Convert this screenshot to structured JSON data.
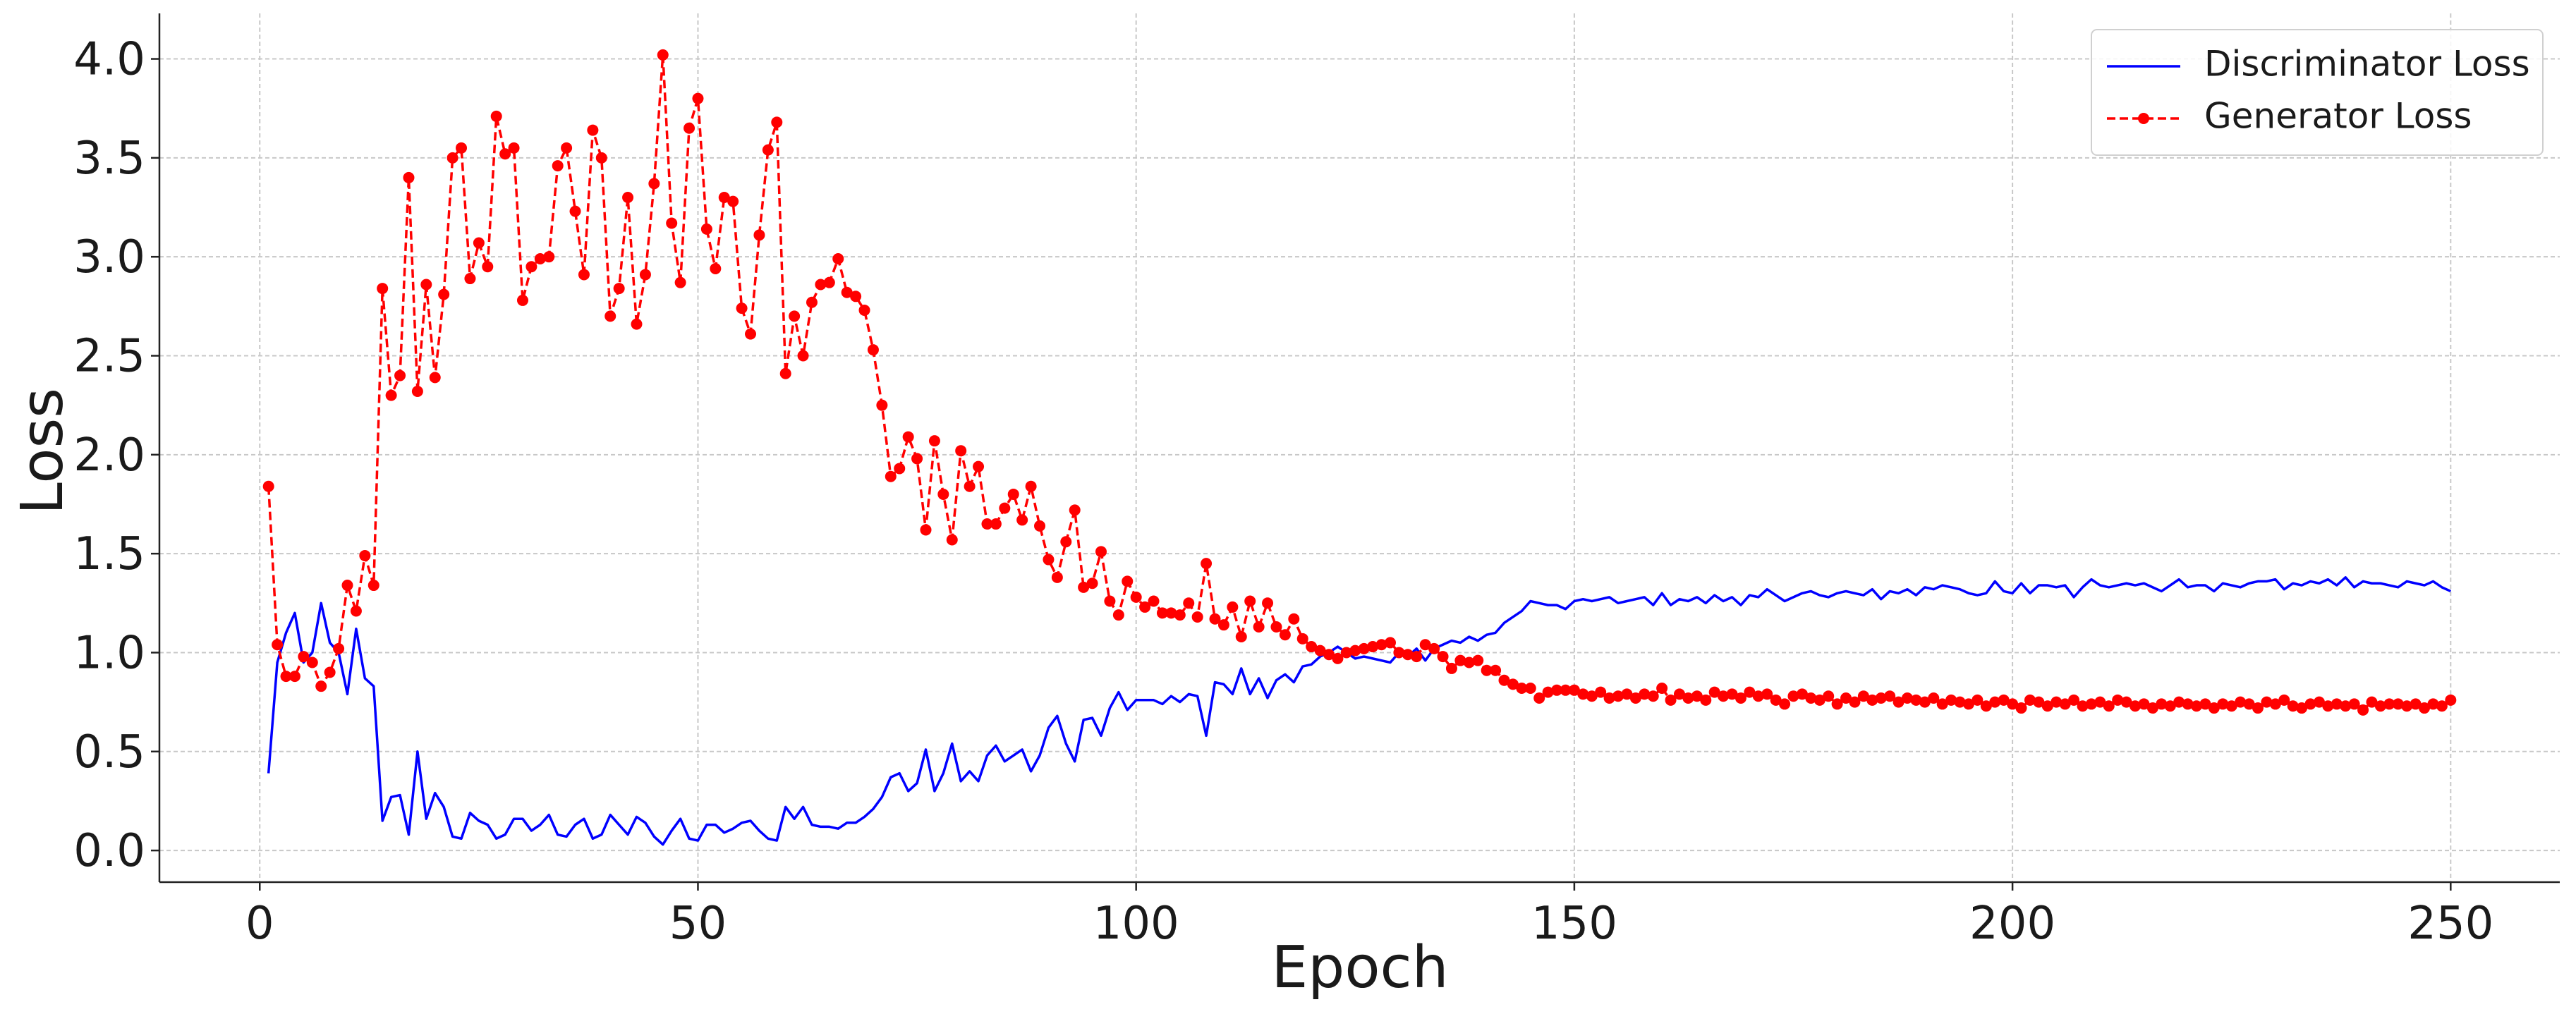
{
  "chart_data": {
    "type": "line",
    "xlabel": "Epoch",
    "ylabel": "Loss",
    "x": [
      1,
      2,
      3,
      4,
      5,
      6,
      7,
      8,
      9,
      10,
      11,
      12,
      13,
      14,
      15,
      16,
      17,
      18,
      19,
      20,
      21,
      22,
      23,
      24,
      25,
      26,
      27,
      28,
      29,
      30,
      31,
      32,
      33,
      34,
      35,
      36,
      37,
      38,
      39,
      40,
      41,
      42,
      43,
      44,
      45,
      46,
      47,
      48,
      49,
      50,
      51,
      52,
      53,
      54,
      55,
      56,
      57,
      58,
      59,
      60,
      61,
      62,
      63,
      64,
      65,
      66,
      67,
      68,
      69,
      70,
      71,
      72,
      73,
      74,
      75,
      76,
      77,
      78,
      79,
      80,
      81,
      82,
      83,
      84,
      85,
      86,
      87,
      88,
      89,
      90,
      91,
      92,
      93,
      94,
      95,
      96,
      97,
      98,
      99,
      100,
      101,
      102,
      103,
      104,
      105,
      106,
      107,
      108,
      109,
      110,
      111,
      112,
      113,
      114,
      115,
      116,
      117,
      118,
      119,
      120,
      121,
      122,
      123,
      124,
      125,
      126,
      127,
      128,
      129,
      130,
      131,
      132,
      133,
      134,
      135,
      136,
      137,
      138,
      139,
      140,
      141,
      142,
      143,
      144,
      145,
      146,
      147,
      148,
      149,
      150,
      151,
      152,
      153,
      154,
      155,
      156,
      157,
      158,
      159,
      160,
      161,
      162,
      163,
      164,
      165,
      166,
      167,
      168,
      169,
      170,
      171,
      172,
      173,
      174,
      175,
      176,
      177,
      178,
      179,
      180,
      181,
      182,
      183,
      184,
      185,
      186,
      187,
      188,
      189,
      190,
      191,
      192,
      193,
      194,
      195,
      196,
      197,
      198,
      199,
      200,
      201,
      202,
      203,
      204,
      205,
      206,
      207,
      208,
      209,
      210,
      211,
      212,
      213,
      214,
      215,
      216,
      217,
      218,
      219,
      220,
      221,
      222,
      223,
      224,
      225,
      226,
      227,
      228,
      229,
      230,
      231,
      232,
      233,
      234,
      235,
      236,
      237,
      238,
      239,
      240,
      241,
      242,
      243,
      244,
      245,
      246,
      247,
      248,
      249,
      250
    ],
    "series": [
      {
        "name": "Discriminator Loss",
        "color": "#0000ff",
        "dashed": false,
        "markers": false,
        "values": [
          0.39,
          0.95,
          1.1,
          1.2,
          0.95,
          1.0,
          1.25,
          1.05,
          1.0,
          0.79,
          1.12,
          0.87,
          0.83,
          0.15,
          0.27,
          0.28,
          0.08,
          0.5,
          0.16,
          0.29,
          0.22,
          0.07,
          0.06,
          0.19,
          0.15,
          0.13,
          0.06,
          0.08,
          0.16,
          0.16,
          0.1,
          0.13,
          0.18,
          0.08,
          0.07,
          0.13,
          0.16,
          0.06,
          0.08,
          0.18,
          0.13,
          0.08,
          0.17,
          0.14,
          0.07,
          0.03,
          0.1,
          0.16,
          0.06,
          0.05,
          0.13,
          0.13,
          0.09,
          0.11,
          0.14,
          0.15,
          0.1,
          0.06,
          0.05,
          0.22,
          0.16,
          0.22,
          0.13,
          0.12,
          0.12,
          0.11,
          0.14,
          0.14,
          0.17,
          0.21,
          0.27,
          0.37,
          0.39,
          0.3,
          0.34,
          0.51,
          0.3,
          0.39,
          0.54,
          0.35,
          0.4,
          0.35,
          0.48,
          0.53,
          0.45,
          0.48,
          0.51,
          0.4,
          0.48,
          0.62,
          0.68,
          0.54,
          0.45,
          0.66,
          0.67,
          0.58,
          0.72,
          0.8,
          0.71,
          0.76,
          0.76,
          0.76,
          0.74,
          0.78,
          0.75,
          0.79,
          0.78,
          0.58,
          0.85,
          0.84,
          0.79,
          0.92,
          0.79,
          0.87,
          0.77,
          0.86,
          0.89,
          0.85,
          0.93,
          0.94,
          0.98,
          1.0,
          1.03,
          1.0,
          0.97,
          0.98,
          0.97,
          0.96,
          0.95,
          1.0,
          0.98,
          1.02,
          0.96,
          1.02,
          1.04,
          1.06,
          1.05,
          1.08,
          1.06,
          1.09,
          1.1,
          1.15,
          1.18,
          1.21,
          1.26,
          1.25,
          1.24,
          1.24,
          1.22,
          1.26,
          1.27,
          1.26,
          1.27,
          1.28,
          1.25,
          1.26,
          1.27,
          1.28,
          1.24,
          1.3,
          1.24,
          1.27,
          1.26,
          1.28,
          1.25,
          1.29,
          1.26,
          1.28,
          1.24,
          1.29,
          1.28,
          1.32,
          1.29,
          1.26,
          1.28,
          1.3,
          1.31,
          1.29,
          1.28,
          1.3,
          1.31,
          1.3,
          1.29,
          1.32,
          1.27,
          1.31,
          1.3,
          1.32,
          1.29,
          1.33,
          1.32,
          1.34,
          1.33,
          1.32,
          1.3,
          1.29,
          1.3,
          1.36,
          1.31,
          1.3,
          1.35,
          1.3,
          1.34,
          1.34,
          1.33,
          1.34,
          1.28,
          1.33,
          1.37,
          1.34,
          1.33,
          1.34,
          1.35,
          1.34,
          1.35,
          1.33,
          1.31,
          1.34,
          1.37,
          1.33,
          1.34,
          1.34,
          1.31,
          1.35,
          1.34,
          1.33,
          1.35,
          1.36,
          1.36,
          1.37,
          1.32,
          1.35,
          1.34,
          1.36,
          1.35,
          1.37,
          1.34,
          1.38,
          1.33,
          1.36,
          1.35,
          1.35,
          1.34,
          1.33,
          1.36,
          1.35,
          1.34,
          1.36,
          1.33,
          1.31
        ]
      },
      {
        "name": "Generator Loss",
        "color": "#ff0000",
        "dashed": true,
        "markers": true,
        "values": [
          1.84,
          1.04,
          0.88,
          0.88,
          0.98,
          0.95,
          0.83,
          0.9,
          1.02,
          1.34,
          1.21,
          1.49,
          1.34,
          2.84,
          2.3,
          2.4,
          3.4,
          2.32,
          2.86,
          2.39,
          2.81,
          3.5,
          3.55,
          2.89,
          3.07,
          2.95,
          3.71,
          3.52,
          3.55,
          2.78,
          2.95,
          2.99,
          3.0,
          3.46,
          3.55,
          3.23,
          2.91,
          3.64,
          3.5,
          2.7,
          2.84,
          3.3,
          2.66,
          2.91,
          3.37,
          4.02,
          3.17,
          2.87,
          3.65,
          3.8,
          3.14,
          2.94,
          3.3,
          3.28,
          2.74,
          2.61,
          3.11,
          3.54,
          3.68,
          2.41,
          2.7,
          2.5,
          2.77,
          2.86,
          2.87,
          2.99,
          2.82,
          2.8,
          2.73,
          2.53,
          2.25,
          1.89,
          1.93,
          2.09,
          1.98,
          1.62,
          2.07,
          1.8,
          1.57,
          2.02,
          1.84,
          1.94,
          1.65,
          1.65,
          1.73,
          1.8,
          1.67,
          1.84,
          1.64,
          1.47,
          1.38,
          1.56,
          1.72,
          1.33,
          1.35,
          1.51,
          1.26,
          1.19,
          1.36,
          1.28,
          1.23,
          1.26,
          1.2,
          1.2,
          1.19,
          1.25,
          1.18,
          1.45,
          1.17,
          1.14,
          1.23,
          1.08,
          1.26,
          1.13,
          1.25,
          1.13,
          1.09,
          1.17,
          1.07,
          1.03,
          1.01,
          0.99,
          0.97,
          1.0,
          1.01,
          1.02,
          1.03,
          1.04,
          1.05,
          1.0,
          0.99,
          0.98,
          1.04,
          1.02,
          0.98,
          0.92,
          0.96,
          0.95,
          0.96,
          0.91,
          0.91,
          0.86,
          0.84,
          0.82,
          0.82,
          0.77,
          0.8,
          0.81,
          0.81,
          0.81,
          0.79,
          0.78,
          0.8,
          0.77,
          0.78,
          0.79,
          0.77,
          0.79,
          0.78,
          0.82,
          0.76,
          0.79,
          0.77,
          0.78,
          0.76,
          0.8,
          0.78,
          0.79,
          0.77,
          0.8,
          0.78,
          0.79,
          0.76,
          0.74,
          0.78,
          0.79,
          0.77,
          0.76,
          0.78,
          0.74,
          0.77,
          0.75,
          0.78,
          0.76,
          0.77,
          0.78,
          0.75,
          0.77,
          0.76,
          0.75,
          0.77,
          0.74,
          0.76,
          0.75,
          0.74,
          0.76,
          0.73,
          0.75,
          0.76,
          0.74,
          0.72,
          0.76,
          0.75,
          0.73,
          0.75,
          0.74,
          0.76,
          0.73,
          0.74,
          0.75,
          0.73,
          0.76,
          0.75,
          0.73,
          0.74,
          0.72,
          0.74,
          0.73,
          0.75,
          0.74,
          0.73,
          0.74,
          0.72,
          0.74,
          0.73,
          0.75,
          0.74,
          0.72,
          0.75,
          0.74,
          0.76,
          0.73,
          0.72,
          0.74,
          0.75,
          0.73,
          0.74,
          0.73,
          0.74,
          0.71,
          0.75,
          0.73,
          0.74,
          0.74,
          0.73,
          0.74,
          0.72,
          0.74,
          0.73,
          0.76
        ]
      }
    ],
    "xlim": [
      -11.45,
      262.45
    ],
    "xticks": [
      0,
      50,
      100,
      150,
      200,
      250
    ],
    "ylim": [
      -0.16,
      4.23
    ],
    "yticks": [
      {
        "value": 0,
        "label": "0.0"
      },
      0.5,
      {
        "value": 1,
        "label": "1.0"
      },
      1.5,
      {
        "value": 2,
        "label": "2.0"
      },
      2.5,
      {
        "value": 3,
        "label": "3.0"
      },
      3.5,
      {
        "value": 4,
        "label": "4.0"
      }
    ],
    "grid": true,
    "legend": "upper right"
  }
}
